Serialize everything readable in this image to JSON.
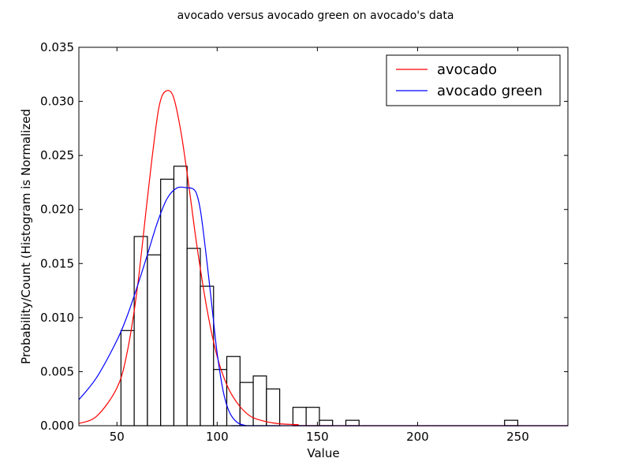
{
  "chart_data": {
    "type": "bar",
    "title": "avocado versus avocado green on avocado's data",
    "xlabel": "Value",
    "ylabel": "Probability/Count (Histogram is Normalized",
    "xlim": [
      31,
      275
    ],
    "ylim": [
      0,
      0.035
    ],
    "xticks": [
      50,
      100,
      150,
      200,
      250
    ],
    "xtick_labels": [
      "50",
      "100",
      "150",
      "200",
      "250"
    ],
    "yticks": [
      0,
      0.005,
      0.01,
      0.015,
      0.02,
      0.025,
      0.03,
      0.035
    ],
    "ytick_labels": [
      "0.000",
      "0.005",
      "0.010",
      "0.015",
      "0.020",
      "0.025",
      "0.030",
      "0.035"
    ],
    "grid": false,
    "legend_position": "top-right",
    "histogram": {
      "bin_width": 6.6,
      "bins": [
        {
          "x": 52.0,
          "value": 0.0088
        },
        {
          "x": 58.6,
          "value": 0.0175
        },
        {
          "x": 65.2,
          "value": 0.0158
        },
        {
          "x": 71.8,
          "value": 0.0228
        },
        {
          "x": 78.4,
          "value": 0.024
        },
        {
          "x": 85.0,
          "value": 0.0164
        },
        {
          "x": 91.6,
          "value": 0.0129
        },
        {
          "x": 98.2,
          "value": 0.0052
        },
        {
          "x": 104.8,
          "value": 0.0064
        },
        {
          "x": 111.4,
          "value": 0.004
        },
        {
          "x": 118.0,
          "value": 0.0046
        },
        {
          "x": 124.6,
          "value": 0.0034
        },
        {
          "x": 131.2,
          "value": 0.0
        },
        {
          "x": 137.8,
          "value": 0.0017
        },
        {
          "x": 144.4,
          "value": 0.0017
        },
        {
          "x": 151.0,
          "value": 0.0005
        },
        {
          "x": 157.6,
          "value": 0.0
        },
        {
          "x": 164.2,
          "value": 0.0005
        },
        {
          "x": 243.4,
          "value": 0.0005
        }
      ]
    },
    "series": [
      {
        "name": "avocado",
        "color": "#ff0000",
        "x": [
          31,
          40,
          50,
          55,
          60,
          65,
          68,
          71,
          74,
          78,
          82,
          86,
          90,
          95,
          100,
          105,
          110,
          115,
          120,
          130,
          140,
          150,
          275
        ],
        "values": [
          0.0002,
          0.0009,
          0.0035,
          0.0067,
          0.0125,
          0.0207,
          0.0255,
          0.0295,
          0.0309,
          0.0305,
          0.0271,
          0.022,
          0.0165,
          0.0107,
          0.0064,
          0.0037,
          0.0021,
          0.0011,
          0.0006,
          0.0002,
          0.0001,
          0.0,
          0.0
        ]
      },
      {
        "name": "avocado green",
        "color": "#0000ff",
        "x": [
          31,
          40,
          50,
          55,
          60,
          65,
          70,
          75,
          80,
          85,
          88,
          90,
          92,
          95,
          98,
          100,
          103,
          106,
          110,
          115,
          120,
          275
        ],
        "values": [
          0.0024,
          0.0045,
          0.0079,
          0.0101,
          0.0128,
          0.0157,
          0.0187,
          0.021,
          0.022,
          0.022,
          0.0219,
          0.0213,
          0.0195,
          0.015,
          0.01,
          0.0067,
          0.0032,
          0.0013,
          0.0003,
          0.0,
          0.0,
          0.0
        ]
      }
    ]
  }
}
